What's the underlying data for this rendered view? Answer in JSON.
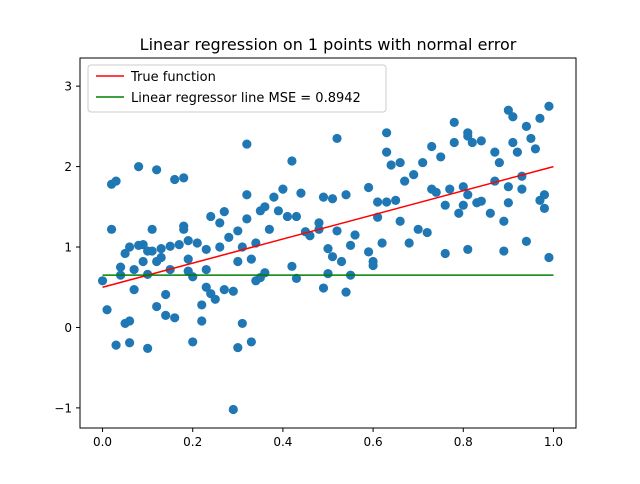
{
  "chart_data": {
    "type": "scatter",
    "title": "Linear regression on 1 points with normal error",
    "xlabel": "",
    "ylabel": "",
    "xlim": [
      -0.05,
      1.05
    ],
    "ylim": [
      -1.25,
      3.35
    ],
    "xticks": [
      0.0,
      0.2,
      0.4,
      0.6,
      0.8,
      1.0
    ],
    "xtick_labels": [
      "0.0",
      "0.2",
      "0.4",
      "0.6",
      "0.8",
      "1.0"
    ],
    "yticks": [
      -1,
      0,
      1,
      2,
      3
    ],
    "ytick_labels": [
      "−1",
      "0",
      "1",
      "2",
      "3"
    ],
    "grid": false,
    "legend_position": "top-left",
    "colors": {
      "points": "#1f77b4",
      "true_function": "#ff0000",
      "regressor": "#008000",
      "axes": "#000000"
    },
    "lines": [
      {
        "name": "True function",
        "color": "#ff0000",
        "x": [
          0.0,
          1.0
        ],
        "y": [
          0.5,
          2.0
        ]
      },
      {
        "name": "Linear regressor line MSE = 0.8942",
        "color": "#008000",
        "x": [
          0.0,
          1.0
        ],
        "y": [
          0.65,
          0.65
        ]
      }
    ],
    "points": [
      [
        0.0,
        0.58
      ],
      [
        0.01,
        0.22
      ],
      [
        0.02,
        1.78
      ],
      [
        0.02,
        1.22
      ],
      [
        0.03,
        1.82
      ],
      [
        0.03,
        -0.22
      ],
      [
        0.04,
        0.75
      ],
      [
        0.04,
        0.65
      ],
      [
        0.05,
        0.92
      ],
      [
        0.05,
        0.05
      ],
      [
        0.06,
        -0.19
      ],
      [
        0.06,
        0.08
      ],
      [
        0.06,
        1.0
      ],
      [
        0.07,
        0.47
      ],
      [
        0.07,
        0.72
      ],
      [
        0.08,
        2.0
      ],
      [
        0.08,
        1.02
      ],
      [
        0.09,
        0.82
      ],
      [
        0.09,
        1.03
      ],
      [
        0.1,
        0.95
      ],
      [
        0.1,
        -0.26
      ],
      [
        0.1,
        0.66
      ],
      [
        0.11,
        1.22
      ],
      [
        0.11,
        0.95
      ],
      [
        0.12,
        0.26
      ],
      [
        0.12,
        0.82
      ],
      [
        0.12,
        1.96
      ],
      [
        0.13,
        0.98
      ],
      [
        0.13,
        0.87
      ],
      [
        0.14,
        0.15
      ],
      [
        0.14,
        0.41
      ],
      [
        0.15,
        0.72
      ],
      [
        0.15,
        1.01
      ],
      [
        0.16,
        1.84
      ],
      [
        0.16,
        0.12
      ],
      [
        0.17,
        1.03
      ],
      [
        0.18,
        1.22
      ],
      [
        0.18,
        1.86
      ],
      [
        0.18,
        1.26
      ],
      [
        0.19,
        0.85
      ],
      [
        0.19,
        1.08
      ],
      [
        0.19,
        0.7
      ],
      [
        0.2,
        0.63
      ],
      [
        0.2,
        -0.18
      ],
      [
        0.21,
        1.05
      ],
      [
        0.22,
        0.08
      ],
      [
        0.22,
        0.28
      ],
      [
        0.23,
        0.97
      ],
      [
        0.23,
        0.72
      ],
      [
        0.23,
        0.5
      ],
      [
        0.24,
        0.42
      ],
      [
        0.24,
        1.38
      ],
      [
        0.25,
        0.35
      ],
      [
        0.26,
        1.3
      ],
      [
        0.26,
        1.0
      ],
      [
        0.27,
        1.44
      ],
      [
        0.27,
        0.47
      ],
      [
        0.28,
        1.12
      ],
      [
        0.29,
        -1.02
      ],
      [
        0.29,
        0.45
      ],
      [
        0.3,
        0.82
      ],
      [
        0.3,
        1.2
      ],
      [
        0.3,
        -0.25
      ],
      [
        0.31,
        0.05
      ],
      [
        0.31,
        1.0
      ],
      [
        0.32,
        1.65
      ],
      [
        0.32,
        1.35
      ],
      [
        0.32,
        2.28
      ],
      [
        0.33,
        0.85
      ],
      [
        0.33,
        -0.18
      ],
      [
        0.34,
        0.58
      ],
      [
        0.34,
        1.05
      ],
      [
        0.35,
        0.62
      ],
      [
        0.35,
        1.45
      ],
      [
        0.36,
        1.5
      ],
      [
        0.36,
        0.68
      ],
      [
        0.37,
        1.22
      ],
      [
        0.38,
        1.62
      ],
      [
        0.39,
        1.45
      ],
      [
        0.4,
        1.72
      ],
      [
        0.41,
        1.38
      ],
      [
        0.42,
        2.07
      ],
      [
        0.42,
        0.76
      ],
      [
        0.43,
        1.38
      ],
      [
        0.43,
        0.61
      ],
      [
        0.44,
        1.67
      ],
      [
        0.45,
        1.19
      ],
      [
        0.46,
        1.14
      ],
      [
        0.48,
        1.3
      ],
      [
        0.48,
        1.22
      ],
      [
        0.49,
        0.49
      ],
      [
        0.49,
        1.62
      ],
      [
        0.5,
        0.98
      ],
      [
        0.5,
        0.67
      ],
      [
        0.51,
        0.88
      ],
      [
        0.51,
        1.6
      ],
      [
        0.52,
        2.35
      ],
      [
        0.52,
        1.2
      ],
      [
        0.53,
        0.82
      ],
      [
        0.54,
        0.44
      ],
      [
        0.54,
        1.65
      ],
      [
        0.55,
        0.65
      ],
      [
        0.55,
        1.02
      ],
      [
        0.56,
        1.15
      ],
      [
        0.59,
        1.74
      ],
      [
        0.59,
        0.94
      ],
      [
        0.6,
        0.82
      ],
      [
        0.6,
        0.77
      ],
      [
        0.61,
        1.37
      ],
      [
        0.61,
        1.56
      ],
      [
        0.62,
        1.05
      ],
      [
        0.63,
        2.42
      ],
      [
        0.63,
        2.18
      ],
      [
        0.63,
        1.56
      ],
      [
        0.64,
        2.02
      ],
      [
        0.65,
        1.58
      ],
      [
        0.66,
        2.05
      ],
      [
        0.66,
        1.32
      ],
      [
        0.67,
        1.82
      ],
      [
        0.68,
        1.05
      ],
      [
        0.69,
        1.9
      ],
      [
        0.7,
        1.22
      ],
      [
        0.71,
        2.05
      ],
      [
        0.72,
        1.18
      ],
      [
        0.73,
        2.25
      ],
      [
        0.73,
        1.72
      ],
      [
        0.74,
        1.68
      ],
      [
        0.75,
        2.12
      ],
      [
        0.76,
        1.52
      ],
      [
        0.76,
        0.92
      ],
      [
        0.77,
        1.72
      ],
      [
        0.78,
        2.55
      ],
      [
        0.78,
        2.3
      ],
      [
        0.79,
        1.42
      ],
      [
        0.8,
        1.75
      ],
      [
        0.8,
        1.52
      ],
      [
        0.81,
        2.42
      ],
      [
        0.81,
        2.38
      ],
      [
        0.81,
        1.65
      ],
      [
        0.81,
        0.97
      ],
      [
        0.82,
        2.3
      ],
      [
        0.83,
        1.55
      ],
      [
        0.84,
        2.32
      ],
      [
        0.84,
        1.57
      ],
      [
        0.86,
        1.42
      ],
      [
        0.87,
        2.18
      ],
      [
        0.87,
        1.82
      ],
      [
        0.88,
        2.05
      ],
      [
        0.89,
        0.95
      ],
      [
        0.89,
        1.32
      ],
      [
        0.9,
        2.7
      ],
      [
        0.9,
        1.75
      ],
      [
        0.9,
        1.55
      ],
      [
        0.91,
        2.62
      ],
      [
        0.91,
        2.3
      ],
      [
        0.92,
        2.18
      ],
      [
        0.93,
        1.88
      ],
      [
        0.93,
        1.72
      ],
      [
        0.94,
        2.5
      ],
      [
        0.94,
        1.07
      ],
      [
        0.95,
        2.35
      ],
      [
        0.96,
        2.22
      ],
      [
        0.97,
        1.58
      ],
      [
        0.97,
        2.6
      ],
      [
        0.98,
        1.65
      ],
      [
        0.98,
        1.48
      ],
      [
        0.99,
        2.75
      ],
      [
        0.99,
        0.87
      ]
    ]
  }
}
